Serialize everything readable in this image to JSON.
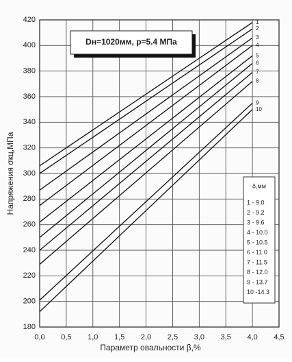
{
  "chart_data": {
    "type": "line",
    "title": "Dн=1020мм, p=5.4 МПа",
    "x_label": "Параметр овальности β,%",
    "y_label": "Напряжения σкц,МПа",
    "x": [
      0,
      4
    ],
    "series": [
      {
        "name": "1",
        "color": "#1a1a1a",
        "values": [
          306,
          418
        ]
      },
      {
        "name": "2",
        "color": "#1a1a1a",
        "values": [
          300,
          413
        ]
      },
      {
        "name": "3",
        "color": "#1a1a1a",
        "values": [
          287,
          406
        ]
      },
      {
        "name": "4",
        "color": "#1a1a1a",
        "values": [
          275,
          400
        ]
      },
      {
        "name": "5",
        "color": "#1a1a1a",
        "values": [
          262,
          392
        ]
      },
      {
        "name": "6",
        "color": "#1a1a1a",
        "values": [
          250,
          386
        ]
      },
      {
        "name": "7",
        "color": "#1a1a1a",
        "values": [
          240,
          379
        ]
      },
      {
        "name": "8",
        "color": "#1a1a1a",
        "values": [
          229,
          372
        ]
      },
      {
        "name": "9",
        "color": "#1a1a1a",
        "values": [
          201,
          355
        ]
      },
      {
        "name": "10",
        "color": "#1a1a1a",
        "values": [
          192,
          350
        ]
      }
    ],
    "legend_title": "δ,мм",
    "legend_entries": [
      "1 - 9.0",
      "2 - 9.2",
      "3 - 9.6",
      "4 - 10.0",
      "5 - 10.5",
      "6 - 11.0",
      "7 - 11.5",
      "8 - 12.0",
      "9 - 13.7",
      "10 -14.3"
    ],
    "xlim": [
      0,
      4.5
    ],
    "xticks": [
      {
        "value": 0,
        "label": "0,0"
      },
      {
        "value": 0.5,
        "label": "0,5"
      },
      {
        "value": 1,
        "label": "1,0"
      },
      {
        "value": 1.5,
        "label": "1,5"
      },
      {
        "value": 2,
        "label": "2,0"
      },
      {
        "value": 2.5,
        "label": "2,5"
      },
      {
        "value": 3,
        "label": "3,0"
      },
      {
        "value": 3.5,
        "label": "3,5"
      },
      {
        "value": 4,
        "label": "4,0"
      },
      {
        "value": 4.5,
        "label": "4,5"
      }
    ],
    "ylim": [
      180,
      420
    ],
    "yticks": [
      180,
      200,
      220,
      240,
      260,
      280,
      300,
      320,
      340,
      360,
      380,
      400,
      420
    ],
    "grid": true
  }
}
